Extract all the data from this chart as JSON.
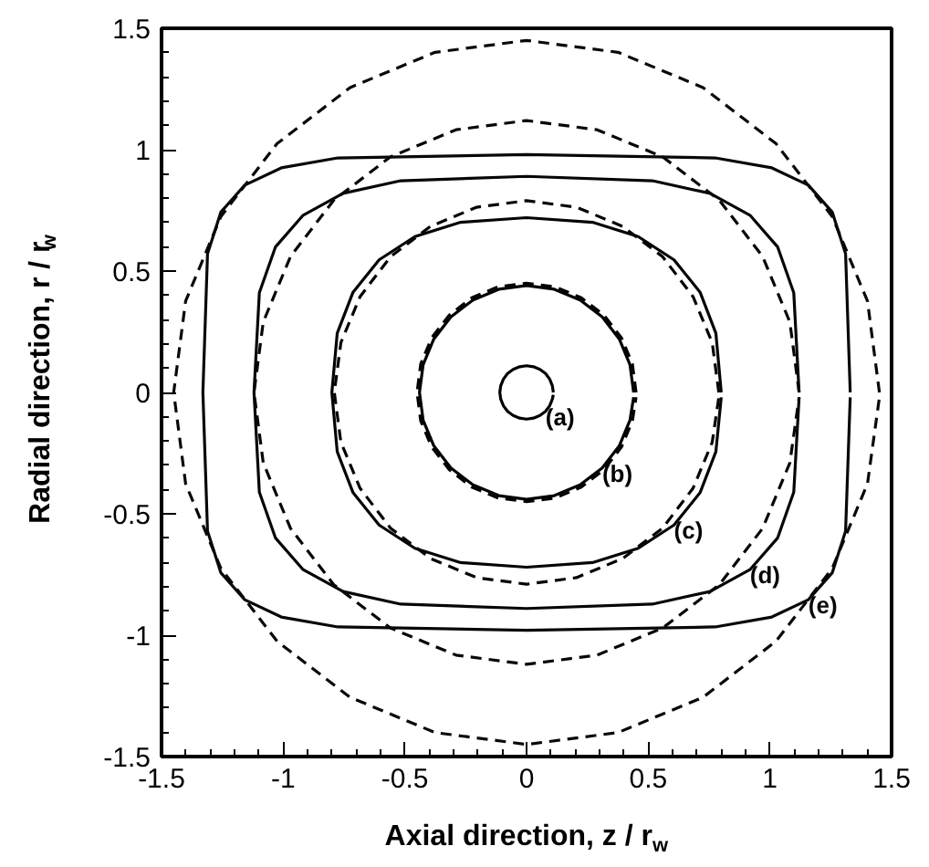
{
  "chart_data": {
    "type": "line",
    "xlabel": "Axial direction, z / r$_{w}$",
    "ylabel": "Radial direction, r / r$_{w}$",
    "xlim": [
      -1.5,
      1.5
    ],
    "ylim": [
      -1.5,
      1.5
    ],
    "xticks": [
      -1.5,
      -1,
      -0.5,
      0,
      0.5,
      1,
      1.5
    ],
    "yticks": [
      -1.5,
      -1,
      -0.5,
      0,
      0.5,
      1,
      1.5
    ],
    "grid": false,
    "series": [
      {
        "name": "(a)",
        "color": "#010101",
        "line_style": "solid",
        "x": [
          0.11,
          0.106,
          0.095,
          0.078,
          0.055,
          0.028,
          0,
          -0.028,
          -0.055,
          -0.078,
          -0.095,
          -0.106,
          -0.11,
          -0.106,
          -0.095,
          -0.078,
          -0.055,
          -0.028,
          0,
          0.028,
          0.055,
          0.078,
          0.095,
          0.106,
          0.11
        ],
        "values": [
          0,
          0.028,
          0.055,
          0.078,
          0.095,
          0.106,
          0.11,
          0.106,
          0.095,
          0.078,
          0.055,
          0.028,
          0,
          -0.028,
          -0.055,
          -0.078,
          -0.095,
          -0.106,
          -0.11,
          -0.106,
          -0.095,
          -0.078,
          -0.055,
          -0.028,
          -0.01
        ]
      },
      {
        "name": "(b)",
        "color": "#020202",
        "line_style": "solid",
        "x": [
          0.44,
          0.425,
          0.381,
          0.311,
          0.22,
          0.114,
          0,
          -0.114,
          -0.22,
          -0.311,
          -0.381,
          -0.425,
          -0.44,
          -0.425,
          -0.381,
          -0.311,
          -0.22,
          -0.114,
          0,
          0.114,
          0.22,
          0.311,
          0.381,
          0.425,
          0.44
        ],
        "values": [
          0,
          0.114,
          0.22,
          0.311,
          0.381,
          0.425,
          0.44,
          0.425,
          0.381,
          0.311,
          0.22,
          0.114,
          0,
          -0.114,
          -0.22,
          -0.311,
          -0.381,
          -0.425,
          -0.44,
          -0.425,
          -0.381,
          -0.311,
          -0.22,
          -0.114,
          -0.02
        ]
      },
      {
        "color": "#030303",
        "line_style": "dashed",
        "x": [
          0.45,
          0.435,
          0.39,
          0.318,
          0.225,
          0.117,
          0,
          -0.117,
          -0.225,
          -0.318,
          -0.39,
          -0.435,
          -0.45,
          -0.435,
          -0.39,
          -0.318,
          -0.225,
          -0.117,
          0,
          0.117,
          0.225,
          0.318,
          0.39,
          0.435,
          0.45
        ],
        "values": [
          0,
          0.117,
          0.225,
          0.318,
          0.39,
          0.435,
          0.45,
          0.435,
          0.39,
          0.318,
          0.225,
          0.117,
          0,
          -0.117,
          -0.225,
          -0.318,
          -0.39,
          -0.435,
          -0.45,
          -0.435,
          -0.39,
          -0.318,
          -0.225,
          -0.117,
          -0.02
        ]
      },
      {
        "name": "(c)",
        "color": "#040404",
        "line_style": "solid",
        "x": [
          0.8,
          0.778,
          0.713,
          0.606,
          0.459,
          0.271,
          0,
          -0.271,
          -0.459,
          -0.606,
          -0.713,
          -0.778,
          -0.8,
          -0.778,
          -0.713,
          -0.606,
          -0.459,
          -0.271,
          0,
          0.271,
          0.459,
          0.606,
          0.713,
          0.778,
          0.8
        ],
        "values": [
          0,
          0.244,
          0.413,
          0.546,
          0.642,
          0.701,
          0.72,
          0.701,
          0.642,
          0.546,
          0.413,
          0.244,
          0,
          -0.244,
          -0.413,
          -0.546,
          -0.642,
          -0.701,
          -0.72,
          -0.701,
          -0.642,
          -0.546,
          -0.413,
          -0.244,
          -0.02
        ]
      },
      {
        "color": "#050505",
        "line_style": "dashed",
        "x": [
          0.79,
          0.763,
          0.684,
          0.559,
          0.395,
          0.205,
          0,
          -0.205,
          -0.395,
          -0.559,
          -0.684,
          -0.763,
          -0.79,
          -0.763,
          -0.684,
          -0.559,
          -0.395,
          -0.205,
          0,
          0.205,
          0.395,
          0.559,
          0.684,
          0.763,
          0.79
        ],
        "values": [
          0,
          0.205,
          0.395,
          0.559,
          0.684,
          0.763,
          0.79,
          0.763,
          0.684,
          0.559,
          0.395,
          0.205,
          0,
          -0.205,
          -0.395,
          -0.559,
          -0.684,
          -0.763,
          -0.79,
          -0.763,
          -0.684,
          -0.559,
          -0.395,
          -0.205,
          -0.02
        ]
      },
      {
        "name": "(d)",
        "color": "#060606",
        "line_style": "solid",
        "x": [
          1.12,
          1.098,
          1.032,
          0.918,
          0.754,
          0.517,
          0,
          -0.517,
          -0.754,
          -0.918,
          -1.032,
          -1.098,
          -1.12,
          -1.098,
          -1.032,
          -0.918,
          -0.754,
          -0.517,
          0,
          0.517,
          0.754,
          0.918,
          1.032,
          1.098,
          1.12
        ],
        "values": [
          0,
          0.411,
          0.599,
          0.73,
          0.82,
          0.872,
          0.89,
          0.872,
          0.82,
          0.73,
          0.599,
          0.411,
          0,
          -0.411,
          -0.599,
          -0.73,
          -0.82,
          -0.872,
          -0.89,
          -0.872,
          -0.82,
          -0.73,
          -0.599,
          -0.411,
          -0.02
        ]
      },
      {
        "color": "#070707",
        "line_style": "dashed",
        "x": [
          1.12,
          1.082,
          0.97,
          0.792,
          0.56,
          0.29,
          0,
          -0.29,
          -0.56,
          -0.792,
          -0.97,
          -1.082,
          -1.12,
          -1.082,
          -0.97,
          -0.792,
          -0.56,
          -0.29,
          0,
          0.29,
          0.56,
          0.792,
          0.97,
          1.082,
          1.12
        ],
        "values": [
          0,
          0.29,
          0.56,
          0.792,
          0.97,
          1.082,
          1.12,
          1.082,
          0.97,
          0.792,
          0.56,
          0.29,
          0,
          -0.29,
          -0.56,
          -0.792,
          -0.97,
          -1.082,
          -1.12,
          -1.082,
          -0.97,
          -0.792,
          -0.56,
          -0.29,
          -0.02
        ]
      },
      {
        "name": "(e)",
        "color": "#080808",
        "line_style": "solid",
        "x": [
          1.33,
          1.311,
          1.256,
          1.158,
          1.008,
          0.775,
          0,
          -0.775,
          -1.008,
          -1.158,
          -1.256,
          -1.311,
          -1.33,
          -1.311,
          -1.256,
          -1.158,
          -1.008,
          -0.775,
          0,
          0.775,
          1.008,
          1.158,
          1.256,
          1.311,
          1.33
        ],
        "values": [
          0,
          0.571,
          0.743,
          0.854,
          0.925,
          0.966,
          0.98,
          0.966,
          0.925,
          0.854,
          0.743,
          0.571,
          0,
          -0.571,
          -0.743,
          -0.854,
          -0.925,
          -0.966,
          -0.98,
          -0.966,
          -0.925,
          -0.854,
          -0.743,
          -0.571,
          -0.02
        ]
      },
      {
        "color": "#090909",
        "line_style": "dashed",
        "x": [
          1.45,
          1.401,
          1.256,
          1.025,
          0.725,
          0.376,
          0,
          -0.376,
          -0.725,
          -1.025,
          -1.256,
          -1.401,
          -1.45,
          -1.401,
          -1.256,
          -1.025,
          -0.725,
          -0.376,
          0,
          0.376,
          0.725,
          1.025,
          1.256,
          1.401,
          1.45
        ],
        "values": [
          0,
          0.376,
          0.725,
          1.025,
          1.256,
          1.401,
          1.45,
          1.401,
          1.256,
          1.025,
          0.725,
          0.376,
          0,
          -0.376,
          -0.725,
          -1.025,
          -1.256,
          -1.401,
          -1.45,
          -1.401,
          -1.256,
          -1.025,
          -0.725,
          -0.376,
          -0.02
        ]
      }
    ]
  }
}
